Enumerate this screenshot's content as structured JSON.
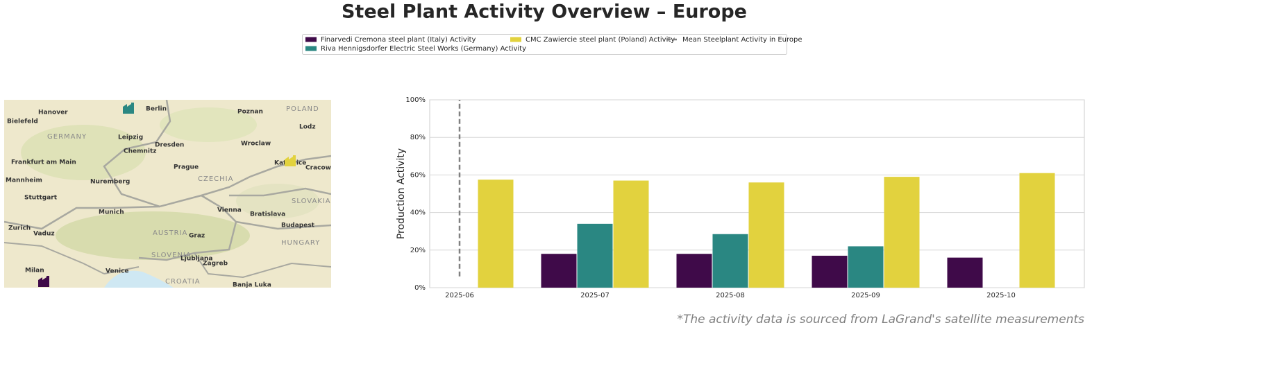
{
  "chart_data": {
    "type": "bar",
    "title": "Steel Plant Activity Overview – Europe",
    "categories": [
      "2025-06",
      "2025-07",
      "2025-08",
      "2025-09",
      "2025-10"
    ],
    "series": [
      {
        "name": "Finarvedi Cremona steel plant (Italy) Activity",
        "color": "#3f0a49",
        "values": [
          null,
          18,
          18,
          17,
          16
        ]
      },
      {
        "name": "Riva Hennigsdorfer Electric Steel Works (Germany) Activity",
        "color": "#2a8782",
        "values": [
          null,
          34,
          28.5,
          22,
          null
        ]
      },
      {
        "name": "CMC Zawiercie steel plant (Poland) Activity",
        "color": "#e2d23e",
        "values": [
          57.5,
          57,
          56,
          59,
          61
        ]
      }
    ],
    "mean_line": {
      "name": "Mean Steelplant Activity in Europe",
      "color": "#808080",
      "values": [
        6,
        100
      ]
    },
    "ylabel": "Production Activity",
    "ylim": [
      0,
      100
    ],
    "yticks": [
      {
        "value": 0,
        "label": "0%"
      },
      {
        "value": 20,
        "label": "20%"
      },
      {
        "value": 40,
        "label": "40%"
      },
      {
        "value": 60,
        "label": "60%"
      },
      {
        "value": 80,
        "label": "80%"
      },
      {
        "value": 100,
        "label": "100%"
      }
    ],
    "grid": true,
    "footnote": "*The activity data is sourced from LaGrand's satellite measurements"
  },
  "map": {
    "labels": [
      "Hanover",
      "Berlin",
      "Poznan",
      "POLAND",
      "Bielefeld",
      "GERMANY",
      "Leipzig",
      "Dresden",
      "Wroclaw",
      "Lodz",
      "Chemnitz",
      "Frankfurt am Main",
      "Prague",
      "Katowice",
      "Cracow",
      "CZECHIA",
      "Mannheim",
      "Nuremberg",
      "Stuttgart",
      "SLOVAKIA",
      "Munich",
      "Vienna",
      "Bratislava",
      "Zurich",
      "Vaduz",
      "AUSTRIA",
      "Graz",
      "Budapest",
      "HUNGARY",
      "SLOVENIA",
      "Ljubljana",
      "Zagreb",
      "Milan",
      "Venice",
      "CROATIA",
      "Banja Luka"
    ]
  }
}
